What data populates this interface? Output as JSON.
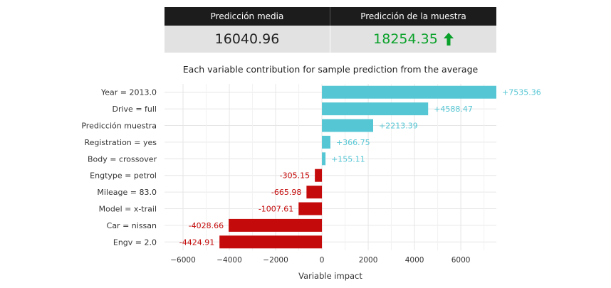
{
  "summary": {
    "mean_header": "Predicción media",
    "sample_header": "Predicción de la muestra",
    "mean_value": "16040.96",
    "sample_value": "18254.35",
    "sample_trend_icon": "up-arrow-icon",
    "colors": {
      "header_bg": "#1c1c1c",
      "value_bg": "#e2e2e2",
      "positive": "#0aa12a"
    }
  },
  "chart_data": {
    "type": "bar",
    "orientation": "horizontal",
    "title": "Each variable contribution for sample prediction from the average",
    "xlabel": "Variable impact",
    "ylabel": "",
    "xlim": [
      -6800,
      7535.36
    ],
    "xticks": [
      -6000,
      -4000,
      -2000,
      0,
      2000,
      4000,
      6000
    ],
    "xtick_labels": [
      "−6000",
      "−4000",
      "−2000",
      "0",
      "2000",
      "4000",
      "6000"
    ],
    "grid": true,
    "categories": [
      "Year = 2013.0",
      "Drive = full",
      "Predicción muestra",
      "Registration = yes",
      "Body = crossover",
      "Engtype = petrol",
      "Mileage = 83.0",
      "Model = x-trail",
      "Car = nissan",
      "Engv = 2.0"
    ],
    "values": [
      7535.36,
      4588.47,
      2213.39,
      366.75,
      155.11,
      -305.15,
      -665.98,
      -1007.61,
      -4028.66,
      -4424.91
    ],
    "value_labels": [
      "+7535.36",
      "+4588.47",
      "+2213.39",
      "+366.75",
      "+155.11",
      "-305.15",
      "-665.98",
      "-1007.61",
      "-4028.66",
      "-4424.91"
    ],
    "colors": {
      "positive": "#55c6d4",
      "negative": "#c40a0a",
      "grid": "#e6e6e6"
    }
  }
}
